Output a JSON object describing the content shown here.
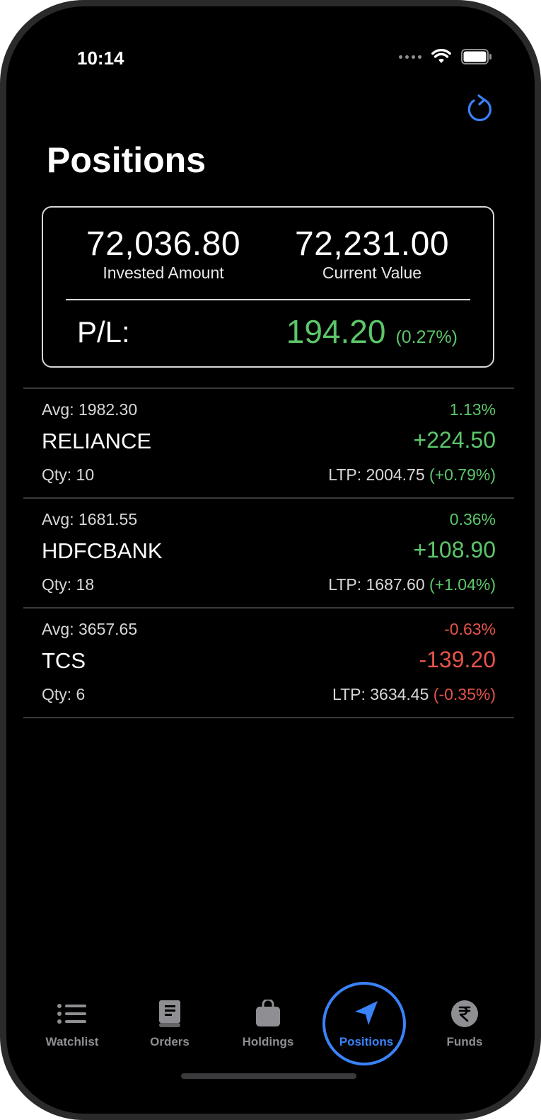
{
  "status_bar": {
    "time": "10:14"
  },
  "page": {
    "title": "Positions"
  },
  "summary": {
    "invested_amount": "72,036.80",
    "invested_label": "Invested Amount",
    "current_value": "72,231.00",
    "current_label": "Current Value",
    "pl_label": "P/L:",
    "pl_amount": "194.20",
    "pl_percent": "(0.27%)",
    "pl_color": "#5cc66a"
  },
  "positions": [
    {
      "avg": "Avg: 1982.30",
      "percent": "1.13%",
      "symbol": "RELIANCE",
      "pnl": "+224.50",
      "qty": "Qty: 10",
      "ltp": "LTP: 2004.75",
      "ltp_change": "(+0.79%)",
      "trend": "up"
    },
    {
      "avg": "Avg: 1681.55",
      "percent": "0.36%",
      "symbol": "HDFCBANK",
      "pnl": "+108.90",
      "qty": "Qty: 18",
      "ltp": "LTP: 1687.60",
      "ltp_change": "(+1.04%)",
      "trend": "up"
    },
    {
      "avg": "Avg: 3657.65",
      "percent": "-0.63%",
      "symbol": "TCS",
      "pnl": "-139.20",
      "qty": "Qty: 6",
      "ltp": "LTP: 3634.45",
      "ltp_change": "(-0.35%)",
      "trend": "down"
    }
  ],
  "tabs": [
    {
      "label": "Watchlist",
      "icon": "list-icon"
    },
    {
      "label": "Orders",
      "icon": "book-icon"
    },
    {
      "label": "Holdings",
      "icon": "bag-icon"
    },
    {
      "label": "Positions",
      "icon": "location-arrow-icon",
      "active": true
    },
    {
      "label": "Funds",
      "icon": "rupee-icon"
    }
  ],
  "colors": {
    "accent": "#3a82f7",
    "positive": "#5cc66a",
    "negative": "#e5534b"
  }
}
